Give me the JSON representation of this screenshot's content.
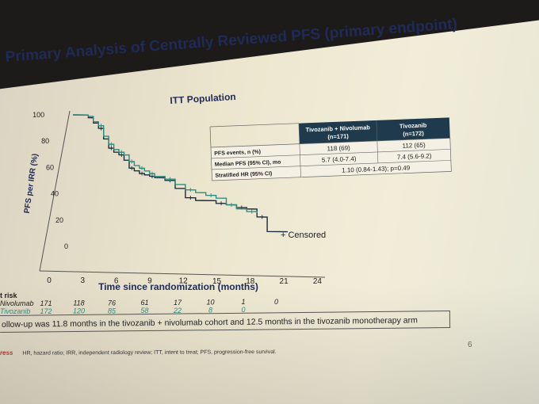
{
  "slide": {
    "title": "Primary Analysis of Centrally Reviewed PFS (primary endpoint)",
    "subtitle": "ITT Population",
    "info_text": "ollow-up was 11.8 months in the tivozanib + nivolumab cohort and 12.5 months in the tivozanib monotherapy arm",
    "footer_brand": "ress",
    "footer_text": "HR, hazard ratio; IRR, independent radiology review; ITT, intent to treat; PFS, progression-free survival.",
    "page_number": "6"
  },
  "table": {
    "headers": [
      "Tivozanib + Nivolumab",
      "Tivozanib"
    ],
    "header_n": [
      "(n=171)",
      "(n=172)"
    ],
    "rows": [
      {
        "label": "PFS events, n (%)",
        "values": [
          "118 (69)",
          "112 (65)"
        ]
      },
      {
        "label": "Median PFS (95% CI), mo",
        "values": [
          "5.7 (4.0-7.4)",
          "7.4 (5.6-9.2)"
        ]
      },
      {
        "label": "Stratified HR (95% CI)",
        "merged": "1.10 (0.84-1.43); p=0.49"
      }
    ],
    "colors": {
      "header_bg": "#1e3a4c",
      "header_text": "#ffffff",
      "border": "#666666"
    }
  },
  "risk": {
    "heading": "t risk",
    "arms": [
      {
        "name": "Nivolumab",
        "counts": [
          "171",
          "118",
          "76",
          "61",
          "17",
          "10",
          "1",
          "0"
        ]
      },
      {
        "name": "Tivozanib",
        "counts": [
          "172",
          "120",
          "85",
          "58",
          "22",
          "8",
          "0",
          ""
        ]
      }
    ]
  },
  "chart_data": {
    "type": "line",
    "title": "",
    "xlabel": "Time since randomization (months)",
    "ylabel": "PFS per IRR (%)",
    "xlim": [
      0,
      24
    ],
    "ylim": [
      0,
      100
    ],
    "xticks": [
      "0",
      "3",
      "6",
      "9",
      "12",
      "15",
      "18",
      "21",
      "24"
    ],
    "yticks": [
      "0",
      "20",
      "40",
      "60",
      "80",
      "100"
    ],
    "legend": "+ Censored",
    "series": [
      {
        "color": "#1a2a3a",
        "x": [
          0,
          1.5,
          2,
          2.5,
          3,
          3.5,
          4,
          4.5,
          5,
          5.5,
          6,
          6.5,
          7,
          7.5,
          8,
          9,
          10,
          11,
          12,
          14,
          15,
          16,
          17,
          18,
          19,
          21
        ],
        "y": [
          100,
          98,
          94,
          90,
          82,
          75,
          72,
          70,
          66,
          60,
          58,
          56,
          55,
          54,
          53,
          51,
          45,
          38,
          36,
          34,
          33,
          31,
          30,
          24,
          13,
          13
        ]
      },
      {
        "color": "#2e8b7e",
        "x": [
          0,
          1.5,
          2,
          2.5,
          3,
          3.5,
          4,
          4.5,
          5,
          5.5,
          6,
          6.5,
          7,
          7.5,
          8,
          9,
          10,
          11,
          12,
          13,
          14,
          15,
          16,
          17,
          18
        ],
        "y": [
          100,
          99,
          95,
          92,
          84,
          78,
          74,
          72,
          70,
          65,
          62,
          60,
          58,
          56,
          54,
          52,
          48,
          44,
          42,
          40,
          38,
          33,
          30,
          28,
          27
        ]
      }
    ]
  }
}
